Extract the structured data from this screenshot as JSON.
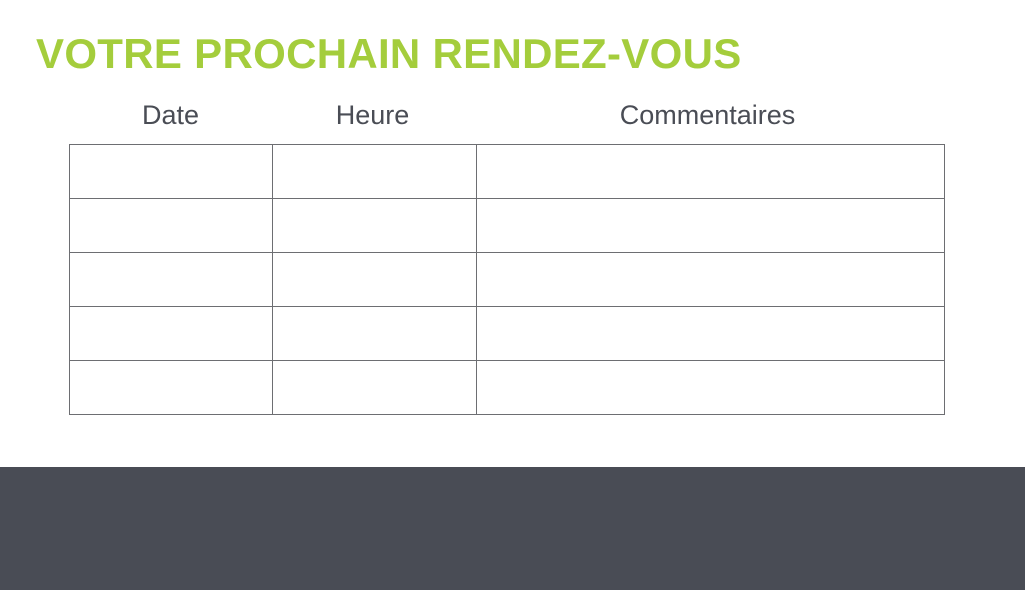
{
  "title": "VOTRE PROCHAIN RENDEZ-VOUS",
  "table": {
    "headers": [
      "Date",
      "Heure",
      "Commentaires"
    ],
    "rows": [
      [
        "",
        "",
        ""
      ],
      [
        "",
        "",
        ""
      ],
      [
        "",
        "",
        ""
      ],
      [
        "",
        "",
        ""
      ],
      [
        "",
        "",
        ""
      ]
    ]
  },
  "colors": {
    "accent": "#a4cd3c",
    "text": "#4a4d55",
    "footer": "#494c55",
    "border": "#6d6e72"
  }
}
